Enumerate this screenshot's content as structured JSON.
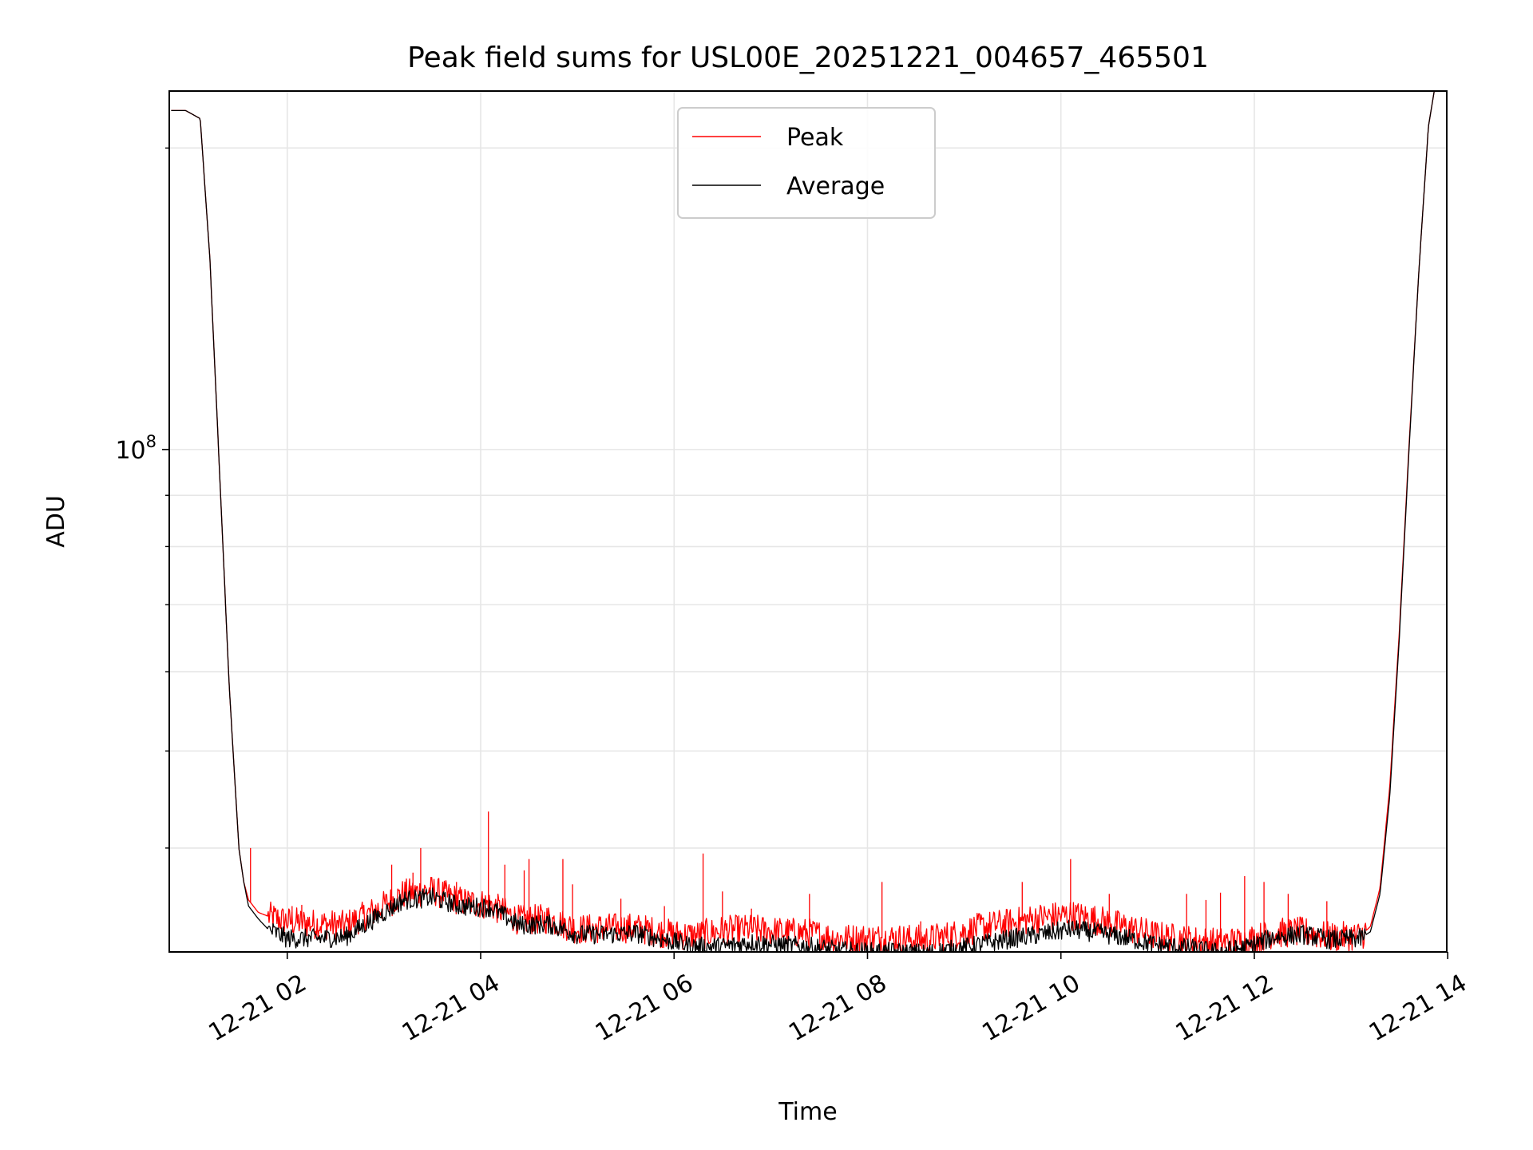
{
  "chart_data": {
    "type": "line",
    "title": "Peak field sums for USL00E_20251221_004657_465501",
    "xlabel": "Time",
    "ylabel": "ADU",
    "y_scale": "log",
    "xlim_hours": [
      0.78,
      13.99
    ],
    "ylim": [
      31500000,
      228000000
    ],
    "x_ticks": [
      {
        "hour": 2,
        "label": "12-21 02"
      },
      {
        "hour": 4,
        "label": "12-21 04"
      },
      {
        "hour": 6,
        "label": "12-21 06"
      },
      {
        "hour": 8,
        "label": "12-21 08"
      },
      {
        "hour": 10,
        "label": "12-21 10"
      },
      {
        "hour": 12,
        "label": "12-21 12"
      },
      {
        "hour": 14,
        "label": "12-21 14"
      }
    ],
    "y_major_ticks": [
      {
        "value": 100000000,
        "base": "10",
        "exp": "8"
      }
    ],
    "y_minor_ticks": [
      40000000,
      50000000,
      60000000,
      70000000,
      80000000,
      90000000,
      200000000
    ],
    "grid": true,
    "legend": {
      "position": "upper-center",
      "entries": [
        {
          "label": "Peak",
          "color": "#ff0000"
        },
        {
          "label": "Average",
          "color": "#000000"
        }
      ]
    },
    "series": [
      {
        "name": "Average",
        "color": "#000000",
        "hours": [
          0.8,
          0.95,
          1.1,
          1.2,
          1.3,
          1.4,
          1.5,
          1.55,
          1.6,
          1.7,
          1.8,
          2.0,
          2.3,
          2.6,
          2.9,
          3.2,
          3.5,
          3.8,
          4.1,
          4.4,
          4.7,
          5.0,
          5.3,
          5.6,
          5.9,
          6.2,
          6.5,
          6.8,
          7.1,
          7.4,
          7.7,
          8.0,
          8.3,
          8.6,
          8.9,
          9.2,
          9.5,
          9.8,
          10.1,
          10.4,
          10.7,
          11.0,
          11.3,
          11.6,
          11.9,
          12.2,
          12.5,
          12.8,
          13.1,
          13.2,
          13.3,
          13.4,
          13.5,
          13.6,
          13.7,
          13.8,
          13.86
        ],
        "values": [
          218000000,
          218000000,
          214000000,
          155000000,
          95000000,
          58000000,
          40000000,
          37000000,
          35000000,
          34000000,
          33200000,
          32500000,
          32500000,
          32600000,
          34000000,
          35500000,
          35700000,
          35000000,
          34900000,
          33500000,
          33600000,
          32800000,
          32800000,
          32900000,
          32400000,
          31900000,
          31900000,
          32200000,
          32000000,
          31900000,
          31600000,
          31500000,
          31500000,
          31400000,
          31700000,
          32100000,
          32500000,
          32800000,
          33200000,
          32900000,
          32500000,
          32000000,
          31800000,
          31500000,
          31800000,
          32600000,
          32800000,
          32400000,
          32500000,
          33000000,
          36000000,
          45000000,
          65000000,
          100000000,
          150000000,
          210000000,
          228000000
        ]
      },
      {
        "name": "Peak",
        "color": "#ff0000",
        "hours": [
          0.8,
          0.95,
          1.1,
          1.2,
          1.3,
          1.4,
          1.5,
          1.55,
          1.6,
          1.7,
          1.8,
          2.0,
          2.3,
          2.6,
          2.9,
          3.2,
          3.5,
          3.8,
          4.1,
          4.4,
          4.7,
          5.0,
          5.3,
          5.6,
          5.9,
          6.2,
          6.5,
          6.8,
          7.1,
          7.4,
          7.7,
          8.0,
          8.3,
          8.6,
          8.9,
          9.2,
          9.5,
          9.8,
          10.1,
          10.4,
          10.7,
          11.0,
          11.3,
          11.6,
          11.9,
          12.2,
          12.5,
          12.8,
          13.1,
          13.2,
          13.3,
          13.4,
          13.5,
          13.6,
          13.7,
          13.8,
          13.86
        ],
        "values": [
          218000000,
          218000000,
          214000000,
          155000000,
          95000000,
          58000000,
          40000000,
          37000000,
          35500000,
          34500000,
          34200000,
          33800000,
          33600000,
          33500000,
          34600000,
          36000000,
          36300000,
          35400000,
          35100000,
          33900000,
          34000000,
          33200000,
          33300000,
          33300000,
          32900000,
          32700000,
          33100000,
          33200000,
          33000000,
          32900000,
          32500000,
          32500000,
          32500000,
          32400000,
          32800000,
          33400000,
          33700000,
          34100000,
          34300000,
          33900000,
          33300000,
          32700000,
          32400000,
          32200000,
          32300000,
          32900000,
          33000000,
          32600000,
          32700000,
          33400000,
          36500000,
          46000000,
          66000000,
          101000000,
          150000000,
          210000000,
          228000000
        ]
      }
    ],
    "peak_spikes": [
      {
        "hour": 1.62,
        "value": 40000000
      },
      {
        "hour": 2.05,
        "value": 35000000
      },
      {
        "hour": 2.15,
        "value": 35100000
      },
      {
        "hour": 3.08,
        "value": 38500000
      },
      {
        "hour": 3.3,
        "value": 37800000
      },
      {
        "hour": 3.38,
        "value": 40000000
      },
      {
        "hour": 3.75,
        "value": 37000000
      },
      {
        "hour": 4.08,
        "value": 43500000
      },
      {
        "hour": 4.25,
        "value": 38500000
      },
      {
        "hour": 4.45,
        "value": 38000000
      },
      {
        "hour": 4.5,
        "value": 39000000
      },
      {
        "hour": 4.85,
        "value": 39000000
      },
      {
        "hour": 4.95,
        "value": 36800000
      },
      {
        "hour": 5.45,
        "value": 35600000
      },
      {
        "hour": 5.9,
        "value": 35000000
      },
      {
        "hour": 6.3,
        "value": 39500000
      },
      {
        "hour": 6.5,
        "value": 36200000
      },
      {
        "hour": 6.8,
        "value": 34800000
      },
      {
        "hour": 7.4,
        "value": 36000000
      },
      {
        "hour": 8.15,
        "value": 37000000
      },
      {
        "hour": 8.55,
        "value": 33800000
      },
      {
        "hour": 9.6,
        "value": 37000000
      },
      {
        "hour": 10.1,
        "value": 39000000
      },
      {
        "hour": 10.5,
        "value": 36000000
      },
      {
        "hour": 11.3,
        "value": 36000000
      },
      {
        "hour": 11.5,
        "value": 35500000
      },
      {
        "hour": 11.65,
        "value": 36100000
      },
      {
        "hour": 11.9,
        "value": 37500000
      },
      {
        "hour": 12.1,
        "value": 37000000
      },
      {
        "hour": 12.35,
        "value": 36000000
      },
      {
        "hour": 12.75,
        "value": 35400000
      }
    ]
  }
}
